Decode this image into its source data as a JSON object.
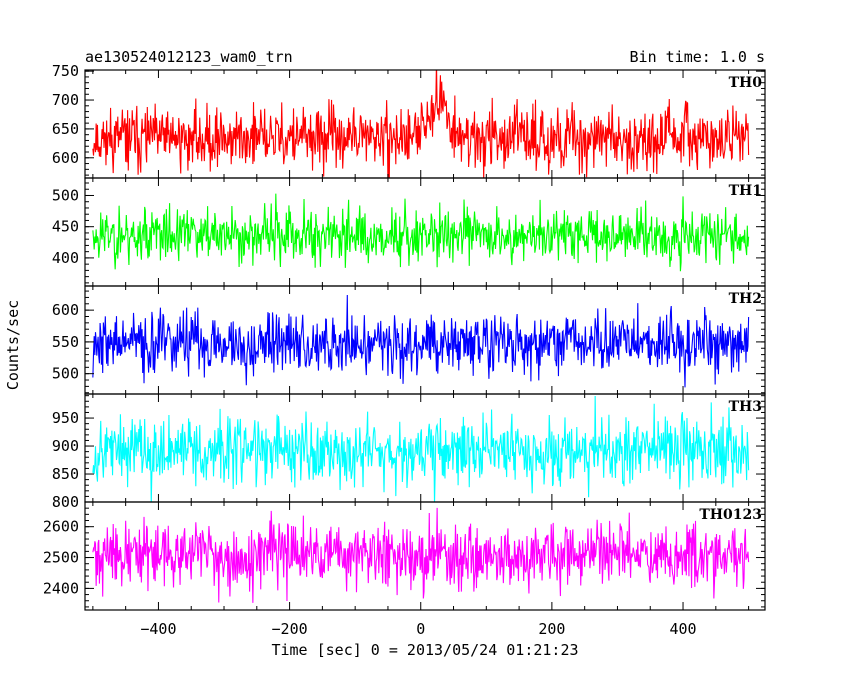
{
  "chart_data": {
    "type": "line",
    "title_left": "ae130524012123_wam0_trn",
    "title_right": "Bin time: 1.0 s",
    "xlabel": "Time [sec] 0 = 2013/05/24 01:21:23",
    "ylabel": "Counts/sec",
    "xlim": [
      -512,
      525
    ],
    "data_x_range": [
      -500,
      500
    ],
    "bin_seconds": 1.0,
    "x_ticks": [
      -400,
      -200,
      0,
      200,
      400
    ],
    "x_tick_labels": [
      "−400",
      "−200",
      "0",
      "200",
      "400"
    ],
    "grid": false,
    "panels": [
      {
        "name": "TH0",
        "color": "#ff0000",
        "ylim": [
          565,
          752
        ],
        "y_ticks": [
          600,
          650,
          700,
          750
        ],
        "y_tick_labels": [
          "600",
          "650",
          "700",
          "750"
        ],
        "mean": 634,
        "noise": 26,
        "spike_peak": 752,
        "values_seed": 11
      },
      {
        "name": "TH1",
        "color": "#00ff00",
        "ylim": [
          355,
          528
        ],
        "y_ticks": [
          400,
          450,
          500
        ],
        "y_tick_labels": [
          "400",
          "450",
          "500"
        ],
        "mean": 437,
        "noise": 22,
        "values_seed": 23
      },
      {
        "name": "TH2",
        "color": "#0000ff",
        "ylim": [
          468,
          638
        ],
        "y_ticks": [
          500,
          550,
          600
        ],
        "y_tick_labels": [
          "500",
          "550",
          "600"
        ],
        "mean": 548,
        "noise": 24,
        "values_seed": 37
      },
      {
        "name": "TH3",
        "color": "#00ffff",
        "ylim": [
          800,
          993
        ],
        "y_ticks": [
          800,
          850,
          900,
          950
        ],
        "y_tick_labels": [
          "800",
          "850",
          "900",
          "950"
        ],
        "mean": 893,
        "noise": 30,
        "values_seed": 53
      },
      {
        "name": "TH0123",
        "color": "#ff00ff",
        "ylim": [
          2330,
          2680
        ],
        "y_ticks": [
          2400,
          2500,
          2600
        ],
        "y_tick_labels": [
          "2400",
          "2500",
          "2600"
        ],
        "mean": 2508,
        "noise": 52,
        "values_seed": 71
      }
    ]
  }
}
